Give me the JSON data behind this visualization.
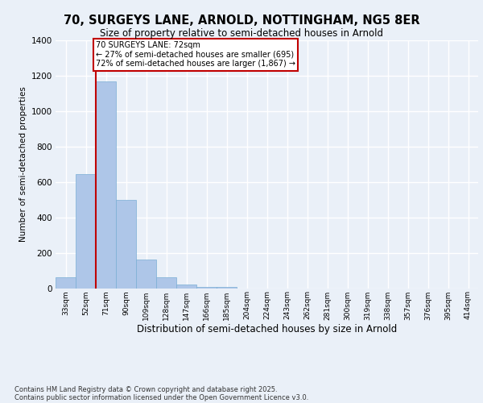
{
  "title_line1": "70, SURGEYS LANE, ARNOLD, NOTTINGHAM, NG5 8ER",
  "title_line2": "Size of property relative to semi-detached houses in Arnold",
  "xlabel": "Distribution of semi-detached houses by size in Arnold",
  "ylabel": "Number of semi-detached properties",
  "categories": [
    "33sqm",
    "52sqm",
    "71sqm",
    "90sqm",
    "109sqm",
    "128sqm",
    "147sqm",
    "166sqm",
    "185sqm",
    "204sqm",
    "224sqm",
    "243sqm",
    "262sqm",
    "281sqm",
    "300sqm",
    "319sqm",
    "338sqm",
    "357sqm",
    "376sqm",
    "395sqm",
    "414sqm"
  ],
  "values": [
    60,
    645,
    1170,
    500,
    160,
    60,
    20,
    8,
    5,
    0,
    0,
    0,
    0,
    0,
    0,
    0,
    0,
    0,
    0,
    0,
    0
  ],
  "bar_color": "#aec6e8",
  "bar_edge_color": "#7aaed4",
  "highlight_index": 2,
  "highlight_color": "#c00000",
  "annotation_title": "70 SURGEYS LANE: 72sqm",
  "annotation_line2": "← 27% of semi-detached houses are smaller (695)",
  "annotation_line3": "72% of semi-detached houses are larger (1,867) →",
  "annotation_box_color": "#c00000",
  "ylim": [
    0,
    1400
  ],
  "yticks": [
    0,
    200,
    400,
    600,
    800,
    1000,
    1200,
    1400
  ],
  "background_color": "#eaf0f8",
  "grid_color": "#ffffff",
  "footer_line1": "Contains HM Land Registry data © Crown copyright and database right 2025.",
  "footer_line2": "Contains public sector information licensed under the Open Government Licence v3.0."
}
